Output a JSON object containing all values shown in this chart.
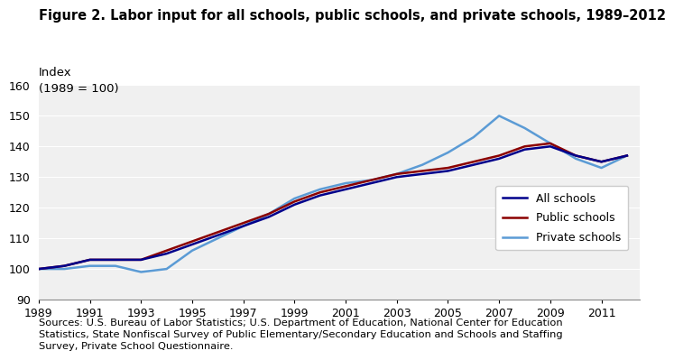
{
  "title": "Figure 2. Labor input for all schools, public schools, and private schools, 1989–2012",
  "ylabel": "Index",
  "ylabel2": "(1989 = 100)",
  "source_text": "Sources: U.S. Bureau of Labor Statistics; U.S. Department of Education, National Center for Education\nStatistics, State Nonfiscal Survey of Public Elementary/Secondary Education and Schools and Staffing\nSurvey, Private School Questionnaire.",
  "years": [
    1989,
    1990,
    1991,
    1992,
    1993,
    1994,
    1995,
    1996,
    1997,
    1998,
    1999,
    2000,
    2001,
    2002,
    2003,
    2004,
    2005,
    2006,
    2007,
    2008,
    2009,
    2010,
    2011,
    2012
  ],
  "all_schools": [
    100,
    101,
    103,
    103,
    103,
    105,
    108,
    111,
    114,
    117,
    121,
    124,
    126,
    128,
    130,
    131,
    132,
    134,
    136,
    139,
    140,
    137,
    135,
    137
  ],
  "public_schools": [
    100,
    101,
    103,
    103,
    103,
    106,
    109,
    112,
    115,
    118,
    122,
    125,
    127,
    129,
    131,
    132,
    133,
    135,
    137,
    140,
    141,
    137,
    135,
    137
  ],
  "private_schools": [
    100,
    100,
    101,
    101,
    99,
    100,
    106,
    110,
    114,
    118,
    123,
    126,
    128,
    129,
    131,
    134,
    138,
    143,
    150,
    146,
    141,
    136,
    133,
    137
  ],
  "all_schools_color": "#00008B",
  "public_schools_color": "#8B0000",
  "private_schools_color": "#5b9bd5",
  "ylim": [
    90,
    160
  ],
  "yticks": [
    90,
    100,
    110,
    120,
    130,
    140,
    150,
    160
  ],
  "xtick_years": [
    1989,
    1991,
    1993,
    1995,
    1997,
    1999,
    2001,
    2003,
    2005,
    2007,
    2009,
    2011
  ],
  "line_width": 1.8,
  "legend_entries": [
    "All schools",
    "Public schools",
    "Private schools"
  ],
  "background_color": "#ffffff",
  "plot_bg_color": "#f0f0f0"
}
